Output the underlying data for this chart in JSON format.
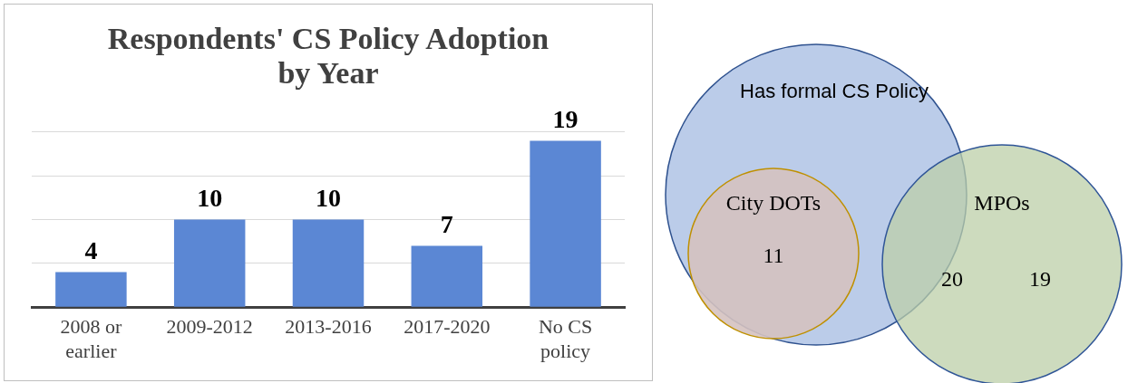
{
  "chart_data": [
    {
      "type": "bar",
      "title": "Respondents' CS Policy Adoption\nby Year",
      "categories": [
        "2008 or\nearlier",
        "2009-2012",
        "2013-2016",
        "2017-2020",
        "No CS\npolicy"
      ],
      "values": [
        4,
        10,
        10,
        7,
        19
      ],
      "color": "#5b87d4",
      "ylim": [
        0,
        20
      ],
      "yticks": [
        {
          "value": 0,
          "label": null
        },
        {
          "value": 5,
          "label": null
        },
        {
          "value": 10,
          "label": null
        },
        {
          "value": 15,
          "label": null
        },
        {
          "value": 20,
          "label": null
        }
      ],
      "grid": "y",
      "tick_labels": "x",
      "data_labels": true,
      "legend": false
    },
    {
      "type": "other",
      "annotations": [
        "Has formal CS Policy",
        "City DOTs",
        "MPOs"
      ],
      "categories": [
        null,
        null,
        null
      ],
      "values": [
        11,
        20,
        19
      ],
      "data_labels": true,
      "colors": [
        "#b4c7e7",
        "#d5c2c0",
        "#bccfa8"
      ]
    }
  ]
}
